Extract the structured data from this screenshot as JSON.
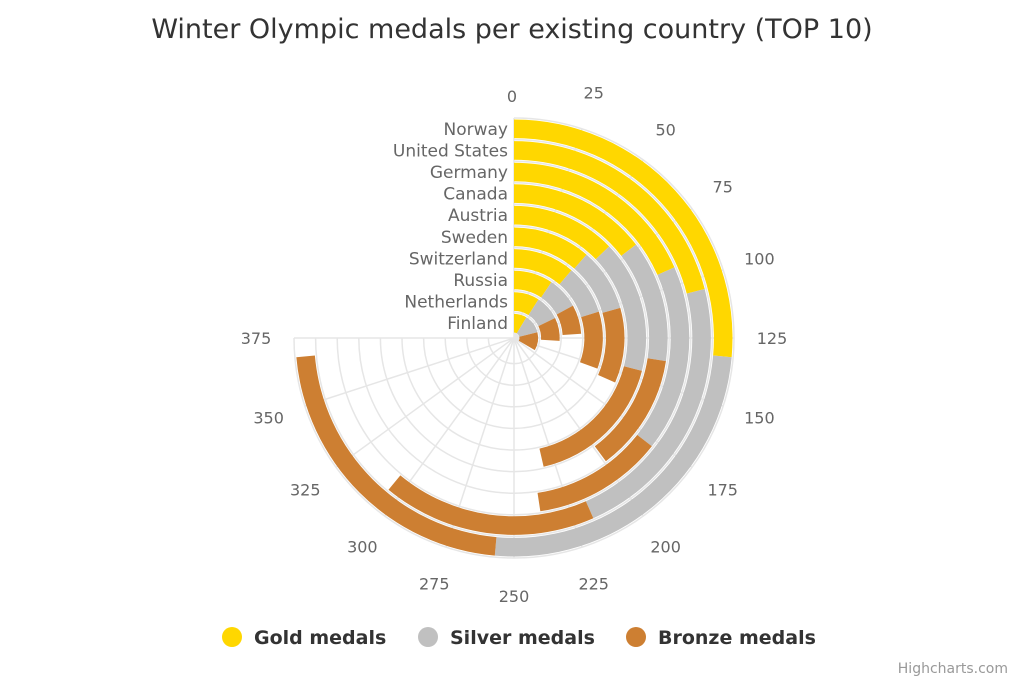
{
  "chart_data": {
    "type": "bar",
    "subtype": "radial-stacked-column",
    "title": "Winter Olympic medals per existing country (TOP 10)",
    "categories": [
      "Norway",
      "United States",
      "Germany",
      "Canada",
      "Austria",
      "Sweden",
      "Switzerland",
      "Russia",
      "Netherlands",
      "Finland"
    ],
    "series": [
      {
        "name": "Gold medals",
        "color": "#FFD700",
        "values": [
          132,
          105,
          92,
          73,
          64,
          57,
          56,
          47,
          45,
          43
        ]
      },
      {
        "name": "Silver medals",
        "color": "#C0C0C0",
        "values": [
          125,
          112,
          86,
          64,
          81,
          46,
          45,
          38,
          44,
          63
        ]
      },
      {
        "name": "Bronze medals",
        "color": "#CD7F32",
        "values": [
          111,
          88,
          60,
          62,
          87,
          55,
          52,
          35,
          41,
          61
        ]
      }
    ],
    "value_axis": {
      "min": 0,
      "max": 375,
      "ticks": [
        "0",
        "25",
        "50",
        "75",
        "100",
        "125",
        "150",
        "175",
        "200",
        "225",
        "250",
        "275",
        "300",
        "325",
        "350",
        "375"
      ]
    },
    "stacking": "normal",
    "grid": true,
    "legend_position": "bottom"
  },
  "credits": "Highcharts.com"
}
